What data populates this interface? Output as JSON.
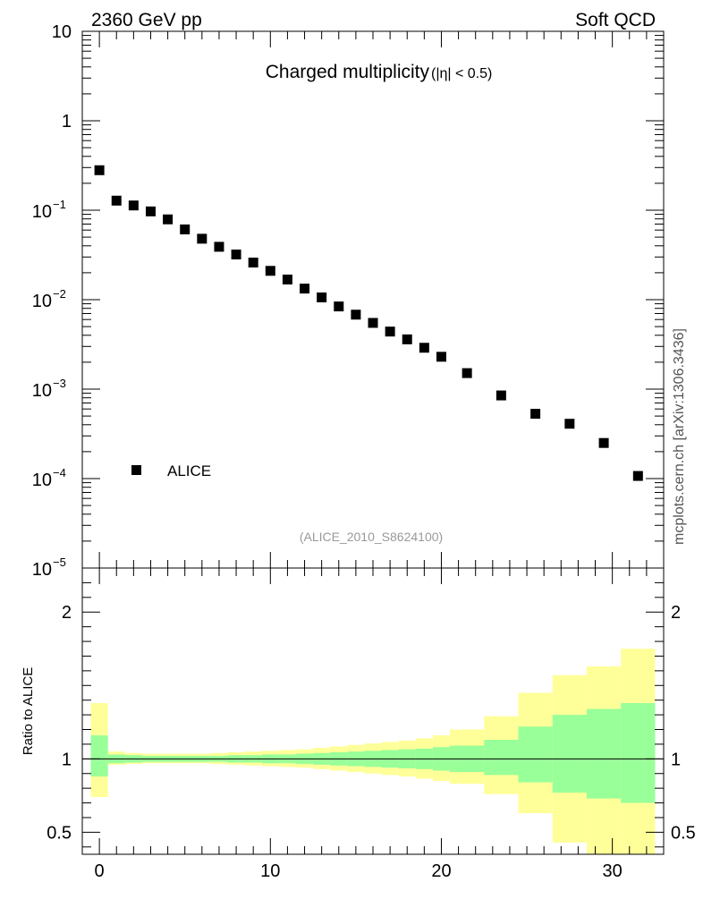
{
  "header": {
    "left": "2360 GeV pp",
    "right": "Soft QCD"
  },
  "side_label": "mcplots.cern.ch [arXiv:1306.3436]",
  "chart_data": [
    {
      "type": "scatter",
      "title_main": "Charged multiplicity",
      "title_cut": "(|η| < 0.5)",
      "analysis_tag": "(ALICE_2010_S8624100)",
      "y_scale": "log",
      "ylim": [
        1e-05,
        10
      ],
      "xlim": [
        -1,
        33
      ],
      "y_ticks": [
        {
          "v": 10,
          "base": "10",
          "exp": ""
        },
        {
          "v": 1,
          "base": "1",
          "exp": ""
        },
        {
          "v": 0.1,
          "base": "10",
          "exp": "−1"
        },
        {
          "v": 0.01,
          "base": "10",
          "exp": "−2"
        },
        {
          "v": 0.001,
          "base": "10",
          "exp": "−3"
        },
        {
          "v": 0.0001,
          "base": "10",
          "exp": "−4"
        },
        {
          "v": 1e-05,
          "base": "10",
          "exp": "−5"
        }
      ],
      "legend": {
        "placement": "bottom-left",
        "entries": [
          "ALICE"
        ]
      },
      "series": [
        {
          "name": "ALICE",
          "x": [
            0,
            1,
            2,
            3,
            4,
            5,
            6,
            7,
            8,
            9,
            10,
            11,
            12,
            13,
            14,
            15,
            16,
            17,
            18,
            19,
            20,
            21.5,
            23.5,
            25.5,
            27.5,
            29.5,
            31.5
          ],
          "y": [
            0.28,
            0.128,
            0.113,
            0.097,
            0.079,
            0.061,
            0.048,
            0.039,
            0.032,
            0.026,
            0.021,
            0.0168,
            0.0133,
            0.0106,
            0.0084,
            0.0068,
            0.0055,
            0.0044,
            0.0036,
            0.0029,
            0.0023,
            0.00151,
            0.00085,
            0.00053,
            0.00041,
            0.00025,
            0.000107
          ]
        }
      ]
    },
    {
      "type": "area",
      "ylabel": "Ratio to ALICE",
      "ylim": [
        0.35,
        2.3
      ],
      "xlim": [
        -1,
        33
      ],
      "y_ticks": [
        "0.5",
        "1",
        "2"
      ],
      "x_ticks": [
        "0",
        "10",
        "20",
        "30"
      ],
      "reference_line": 1,
      "bands": {
        "edges": [
          -0.5,
          0.5,
          1.5,
          2.5,
          3.5,
          4.5,
          5.5,
          6.5,
          7.5,
          8.5,
          9.5,
          10.5,
          11.5,
          12.5,
          13.5,
          14.5,
          15.5,
          16.5,
          17.5,
          18.5,
          19.5,
          20.5,
          22.5,
          24.5,
          26.5,
          28.5,
          30.5,
          32.5
        ],
        "stat_syst_upper": [
          1.38,
          1.05,
          1.04,
          1.035,
          1.035,
          1.035,
          1.035,
          1.04,
          1.045,
          1.05,
          1.055,
          1.06,
          1.065,
          1.075,
          1.085,
          1.095,
          1.105,
          1.115,
          1.125,
          1.14,
          1.16,
          1.2,
          1.29,
          1.45,
          1.57,
          1.63,
          1.75,
          1.95
        ],
        "stat_syst_lower": [
          0.74,
          0.96,
          0.965,
          0.97,
          0.97,
          0.97,
          0.97,
          0.965,
          0.96,
          0.955,
          0.95,
          0.945,
          0.94,
          0.93,
          0.92,
          0.91,
          0.9,
          0.89,
          0.88,
          0.865,
          0.85,
          0.83,
          0.76,
          0.63,
          0.43,
          0.35,
          0.35,
          0.35
        ],
        "stat_upper": [
          1.16,
          1.03,
          1.025,
          1.02,
          1.02,
          1.02,
          1.02,
          1.02,
          1.025,
          1.025,
          1.03,
          1.03,
          1.035,
          1.04,
          1.045,
          1.05,
          1.055,
          1.06,
          1.065,
          1.07,
          1.08,
          1.09,
          1.13,
          1.22,
          1.3,
          1.34,
          1.38,
          1.55
        ],
        "stat_lower": [
          0.88,
          0.97,
          0.975,
          0.98,
          0.98,
          0.98,
          0.98,
          0.98,
          0.975,
          0.975,
          0.97,
          0.97,
          0.965,
          0.96,
          0.955,
          0.95,
          0.945,
          0.94,
          0.935,
          0.93,
          0.92,
          0.91,
          0.89,
          0.84,
          0.77,
          0.73,
          0.7,
          0.55
        ]
      },
      "colors": {
        "syst": "#ffff99",
        "stat": "#99ff99",
        "line": "#000000",
        "marker": "#000000"
      }
    }
  ]
}
